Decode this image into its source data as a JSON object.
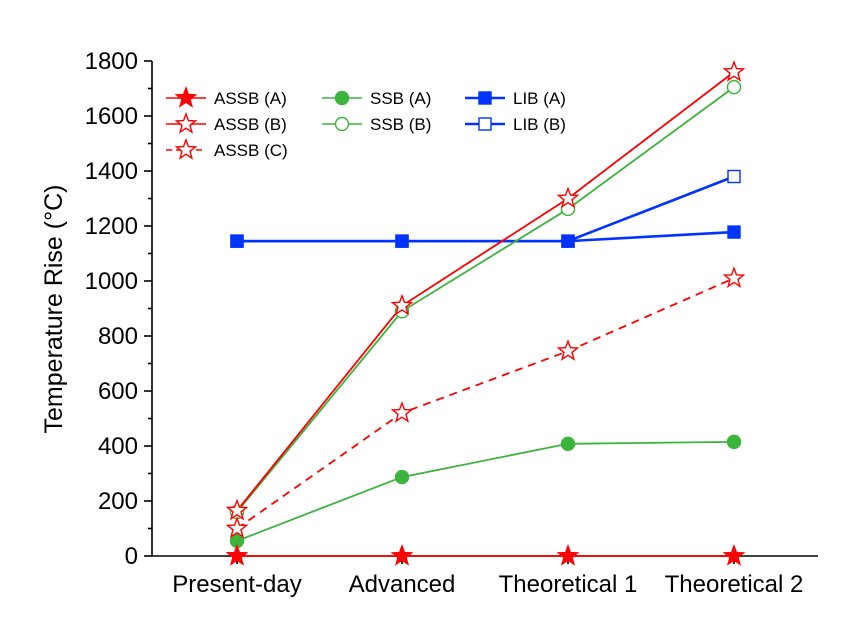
{
  "chart_data": {
    "type": "line",
    "title": "",
    "xlabel": "",
    "ylabel": "Temperature Rise (°C)",
    "categories": [
      "Present-day",
      "Advanced",
      "Theoretical 1",
      "Theoretical 2"
    ],
    "ylim": [
      0,
      1800
    ],
    "yticks": [
      0,
      200,
      400,
      600,
      800,
      1000,
      1200,
      1400,
      1600,
      1800
    ],
    "grid": false,
    "legend_position": "top-left",
    "series": [
      {
        "name": "ASSB (A)",
        "values": [
          0,
          0,
          0,
          0
        ],
        "color": "#ff0000",
        "marker": "star",
        "filled": true,
        "dashed": false
      },
      {
        "name": "ASSB (B)",
        "values": [
          165,
          910,
          1300,
          1760
        ],
        "color": "#ff0000",
        "marker": "star",
        "filled": false,
        "dashed": false
      },
      {
        "name": "ASSB (C)",
        "values": [
          100,
          520,
          745,
          1010
        ],
        "color": "#ff0000",
        "marker": "star",
        "filled": false,
        "dashed": true
      },
      {
        "name": "SSB (A)",
        "values": [
          55,
          287,
          408,
          415
        ],
        "color": "#3cb33c",
        "marker": "circle",
        "filled": true,
        "dashed": false
      },
      {
        "name": "SSB (B)",
        "values": [
          160,
          890,
          1262,
          1705
        ],
        "color": "#3cb33c",
        "marker": "circle",
        "filled": false,
        "dashed": false
      },
      {
        "name": "LIB (A)",
        "values": [
          1145,
          1145,
          1145,
          1178
        ],
        "color": "#0033ff",
        "marker": "square",
        "filled": true,
        "dashed": false
      },
      {
        "name": "LIB (B)",
        "values": [
          1145,
          1145,
          1145,
          1380
        ],
        "color": "#0033ff",
        "marker": "square",
        "filled": false,
        "dashed": false
      }
    ]
  }
}
